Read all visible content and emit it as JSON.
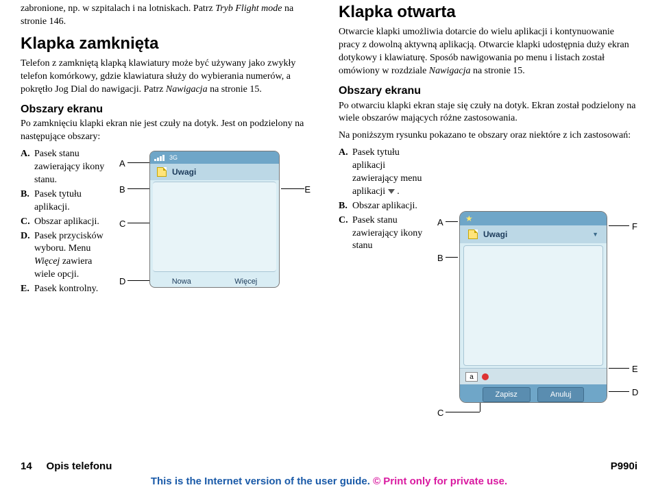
{
  "left": {
    "intro": "zabronione, np. w szpitalach i na lotniskach. Patrz ",
    "intro_em1": "Tryb Flight mode",
    "intro2": " na stronie 146.",
    "h_closed": "Klapka zamknięta",
    "p_closed": "Telefon z zamkniętą klapką klawiatury może być używany jako zwykły telefon komórkowy, gdzie klawiatura służy do wybierania numerów, a pokrętło Jog Dial do nawigacji. Patrz ",
    "p_closed_em": "Nawigacja",
    "p_closed2": " na stronie 15.",
    "h_areas": "Obszary ekranu",
    "p_areas": "Po zamknięciu klapki ekran nie jest czuły na dotyk. Jest on podzielony na następujące obszary:",
    "items": [
      {
        "letter": "A.",
        "text": "Pasek stanu zawierający ikony stanu."
      },
      {
        "letter": "B.",
        "text": "Pasek tytułu aplikacji."
      },
      {
        "letter": "C.",
        "text": "Obszar aplikacji."
      },
      {
        "letter": "D.",
        "text": "Pasek przycisków wyboru. Menu ",
        "em": "Więcej",
        "text2": " zawiera wiele opcji."
      },
      {
        "letter": "E.",
        "text": "Pasek kontrolny."
      }
    ]
  },
  "fig1": {
    "labels": {
      "A": "A",
      "B": "B",
      "C": "C",
      "D": "D",
      "E": "E"
    },
    "title": "Uwagi",
    "sk_left": "Nowa",
    "sk_right": "Więcej",
    "threeg": "3G"
  },
  "right": {
    "h_open": "Klapka otwarta",
    "p1": "Otwarcie klapki umożliwia dotarcie do wielu aplikacji i kontynuowanie pracy z dowolną aktywną aplikacją. Otwarcie klapki udostępnia duży ekran dotykowy i klawiaturę. Sposób nawigowania po menu i listach został omówiony w rozdziale ",
    "p1_em": "Nawigacja",
    "p1b": " na stronie 15.",
    "h_areas": "Obszary ekranu",
    "p2": "Po otwarciu klapki ekran staje się czuły na dotyk. Ekran został podzielony na wiele obszarów mających różne zastosowania.",
    "p3": "Na poniższym rysunku pokazano te obszary oraz niektóre z ich zastosowań:",
    "items": [
      {
        "letter": "A.",
        "text": "Pasek tytułu aplikacji zawierający menu aplikacji "
      },
      {
        "letter": "B.",
        "text": "Obszar aplikacji."
      },
      {
        "letter": "C.",
        "text": "Pasek stanu zawierający ikony stanu"
      }
    ]
  },
  "fig2": {
    "labels": {
      "A": "A",
      "B": "B",
      "C": "C",
      "D": "D",
      "E": "E",
      "F": "F"
    },
    "title": "Uwagi",
    "btn_save": "Zapisz",
    "btn_cancel": "Anuluj",
    "kb_a": "a"
  },
  "footer": {
    "pagenum": "14",
    "section": "Opis telefonu",
    "model": "P990i",
    "l1": "This is the Internet version of the user guide. ",
    "l2": "© Print only for private use."
  },
  "colors": {
    "status_bg": "#6fa6c8",
    "title_bg": "#bcd8e6",
    "body_bg": "#e8f4f8",
    "screen_bg": "#d9edf4"
  }
}
